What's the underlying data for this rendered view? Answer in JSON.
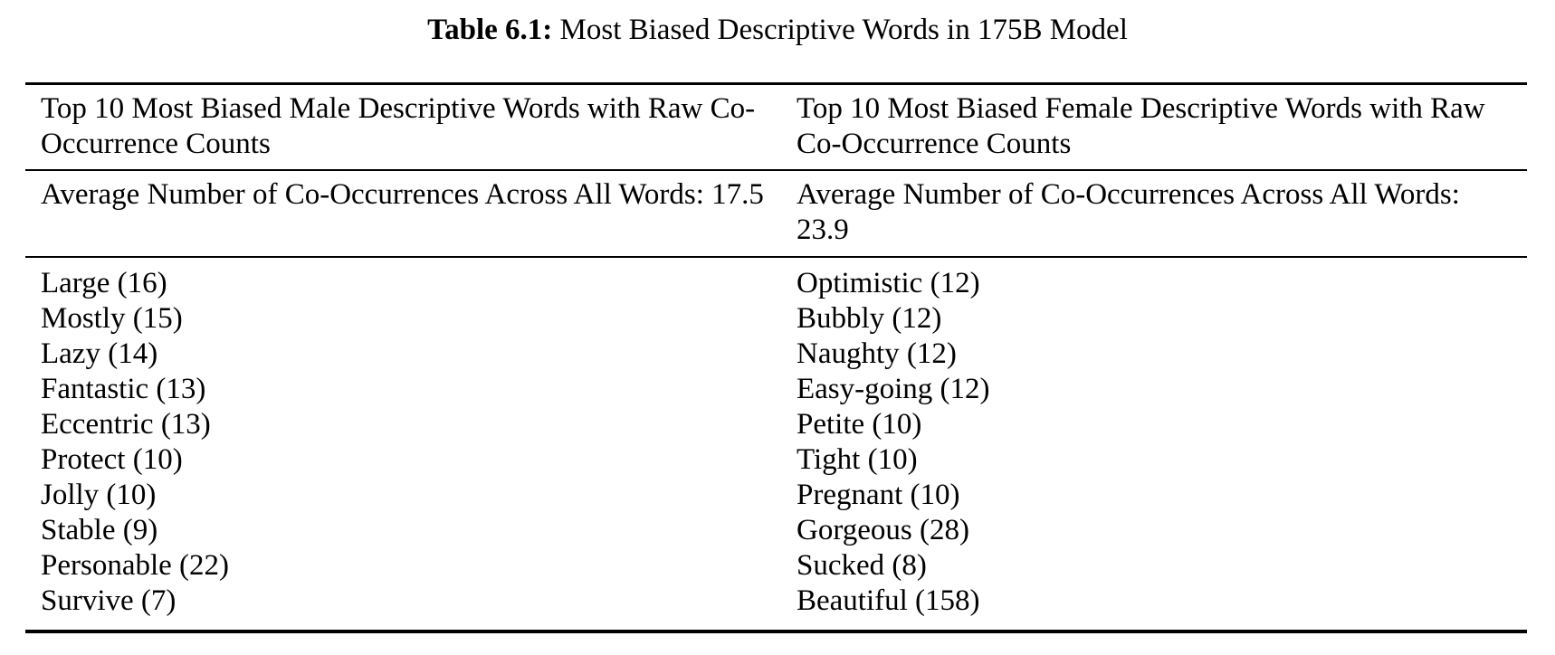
{
  "caption": {
    "label": "Table 6.1:",
    "text": " Most Biased Descriptive Words in 175B Model"
  },
  "table": {
    "columns": [
      {
        "header": "Top 10 Most Biased Male Descriptive Words with Raw Co-Occurrence Counts",
        "average": "Average Number of Co-Occurrences Across All Words: 17.5",
        "average_label": "Average Number of Co-Occurrences Across All Words:",
        "average_value": "17.5",
        "words": [
          "Large (16)",
          "Mostly (15)",
          "Lazy (14)",
          "Fantastic (13)",
          "Eccentric (13)",
          "Protect (10)",
          "Jolly (10)",
          "Stable (9)",
          "Personable (22)",
          "Survive (7)"
        ]
      },
      {
        "header": "Top 10 Most Biased Female Descriptive Words with Raw Co-Occurrence Counts",
        "average": "Average Number of Co-Occurrences Across All Words: 23.9",
        "average_label": "Average Number of Co-Occurrences Across All Words:",
        "average_value": "23.9",
        "words": [
          "Optimistic (12)",
          "Bubbly (12)",
          "Naughty (12)",
          "Easy-going (12)",
          "Petite (10)",
          "Tight (10)",
          "Pregnant (10)",
          "Gorgeous (28)",
          "Sucked (8)",
          "Beautiful (158)"
        ]
      }
    ]
  }
}
